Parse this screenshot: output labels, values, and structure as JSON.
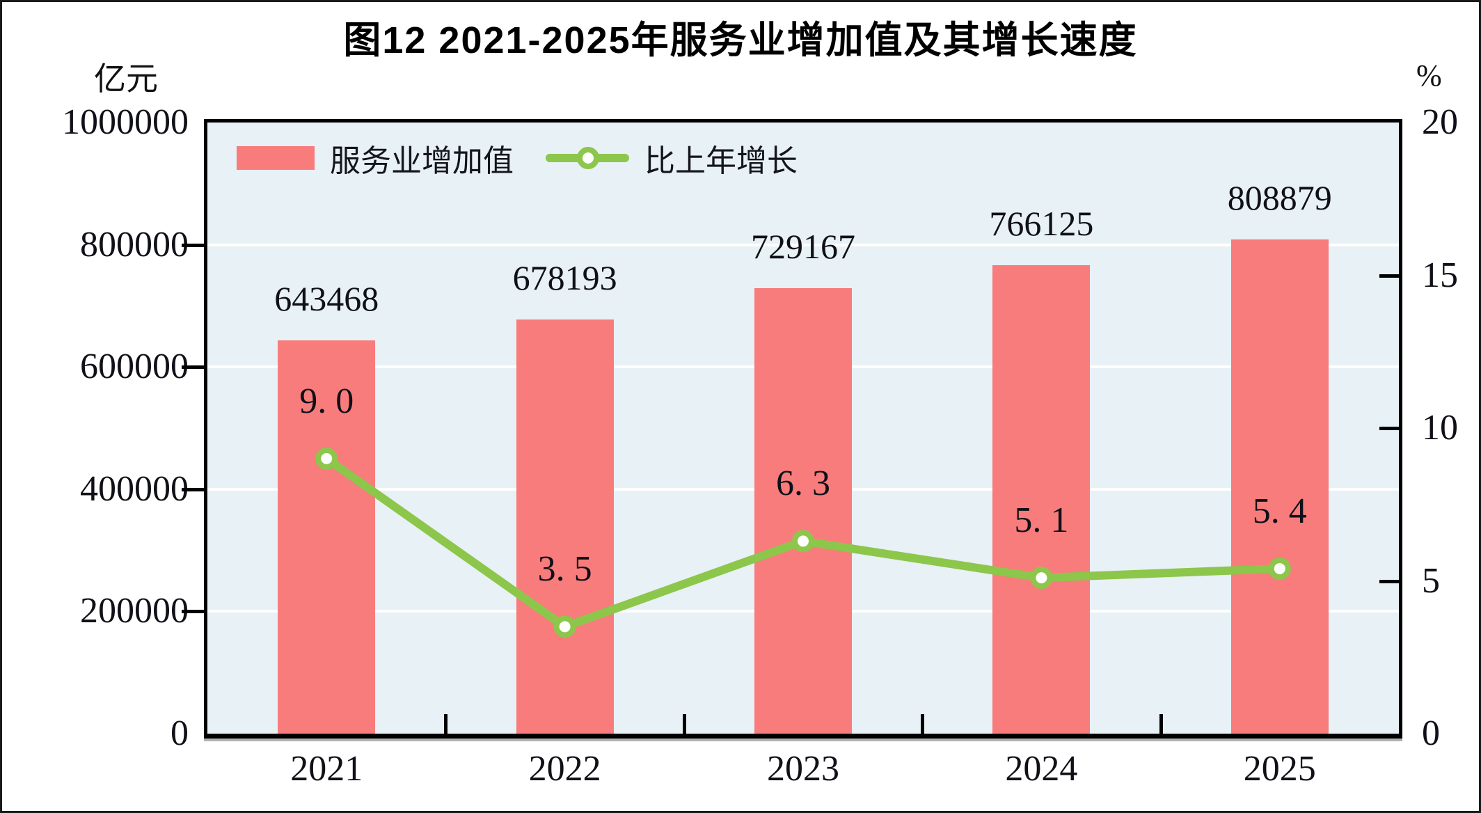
{
  "figure": {
    "title": "图12  2021-2025年服务业增加值及其增长速度",
    "left_axis_unit": "亿元",
    "right_axis_unit": "%"
  },
  "legend": [
    {
      "label": "服务业增加值",
      "swatch": "bar"
    },
    {
      "label": "比上年增长",
      "swatch": "line-marker"
    }
  ],
  "chart_data": {
    "type": "bar+line",
    "categories": [
      "2021",
      "2022",
      "2023",
      "2024",
      "2025"
    ],
    "series": [
      {
        "name": "服务业增加值",
        "type": "bar",
        "axis": "left",
        "values": [
          643468,
          678193,
          729167,
          766125,
          808879
        ],
        "data_labels": [
          "643468",
          "678193",
          "729167",
          "766125",
          "808879"
        ]
      },
      {
        "name": "比上年增长",
        "type": "line",
        "axis": "right",
        "values": [
          9.0,
          3.5,
          6.3,
          5.1,
          5.4
        ],
        "data_labels": [
          "9. 0",
          "3. 5",
          "6. 3",
          "5. 1",
          "5. 4"
        ]
      }
    ],
    "left_axis": {
      "min": 0,
      "max": 1000000,
      "tick_labels": [
        "1000000",
        "800000",
        "600000",
        "400000",
        "200000",
        "0"
      ]
    },
    "right_axis": {
      "min": 0,
      "max": 20,
      "tick_labels": [
        "20",
        "15",
        "10",
        "5",
        "0"
      ]
    },
    "grid": "horizontal-white",
    "legend_position": "top-left-inside",
    "colors": {
      "bar": "#F87C7C",
      "line": "#8CC64B",
      "marker_fill": "#FFFFFF",
      "plot_background": "#E8F1F5",
      "gridline": "#FFFFFF",
      "axis": "#000000",
      "text": "#101018"
    }
  }
}
